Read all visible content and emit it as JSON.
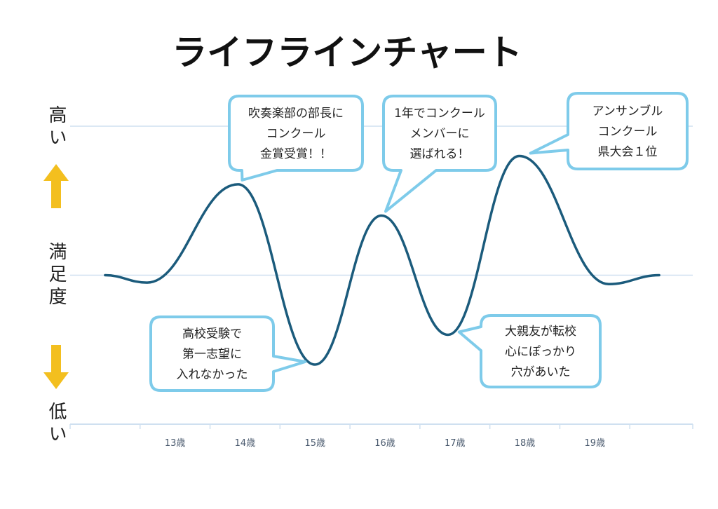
{
  "chart_data": {
    "type": "line",
    "title": "ライフラインチャート",
    "ylabel": "満足度",
    "y_high_label": "高い",
    "y_low_label": "低い",
    "ylim": [
      -100,
      100
    ],
    "xlim": [
      11.5,
      20.4
    ],
    "grid": true,
    "categories": [
      "13歳",
      "14歳",
      "15歳",
      "16歳",
      "17歳",
      "18歳",
      "19歳"
    ],
    "category_values": [
      13,
      14,
      15,
      16,
      17,
      18,
      19
    ],
    "series": [
      {
        "name": "満足度",
        "color": "#1b5b7c",
        "x": [
          12.0,
          12.6,
          13.9,
          15.0,
          15.95,
          16.9,
          17.92,
          19.2,
          19.92
        ],
        "y": [
          0,
          -5,
          61,
          -60,
          40,
          -40,
          80,
          -6,
          0
        ]
      }
    ],
    "annotations": [
      {
        "lines": [
          "吹奏楽部の部長に",
          "コンクール",
          "金賞受賞！！"
        ],
        "x": 13.9,
        "y": 61
      },
      {
        "lines": [
          "1年でコンクール",
          "メンバーに",
          "選ばれる！"
        ],
        "x": 15.95,
        "y": 40
      },
      {
        "lines": [
          "アンサンブル",
          "コンクール",
          "県大会１位"
        ],
        "x": 17.92,
        "y": 80
      },
      {
        "lines": [
          "高校受験で",
          "第一志望に",
          "入れなかった"
        ],
        "x": 15.0,
        "y": -60
      },
      {
        "lines": [
          "大親友が転校",
          "心にぽっかり",
          "穴があいた"
        ],
        "x": 16.9,
        "y": -40
      }
    ],
    "colors": {
      "grid": "#cfe0f0",
      "callout_border": "#7ecbea",
      "arrow": "#f3bf1f"
    }
  }
}
